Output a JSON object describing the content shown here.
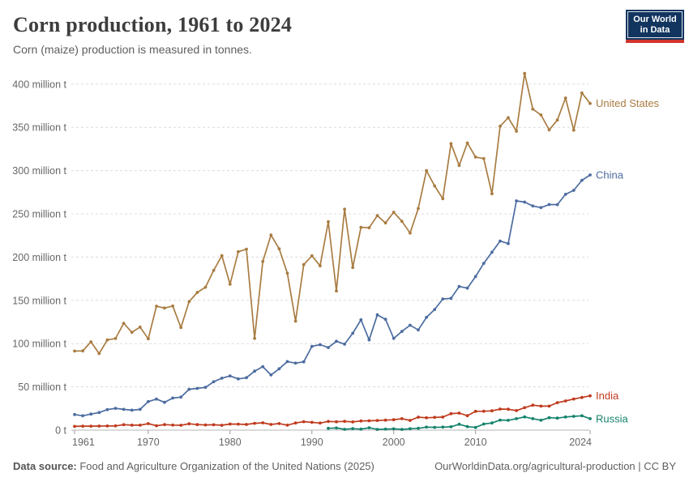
{
  "header": {
    "title": "Corn production, 1961 to 2024",
    "subtitle": "Corn (maize) production is measured in tonnes.",
    "logo": {
      "line1": "Our World",
      "line2": "in Data",
      "bg_color": "#12355f",
      "stripe_color": "#d1342b",
      "text_color": "#ffffff"
    }
  },
  "chart_data": {
    "type": "line",
    "title": "Corn production, 1961 to 2024",
    "subtitle": "Corn (maize) production is measured in tonnes.",
    "unit": "tonnes",
    "xlabel": "",
    "ylabel": "",
    "ylim": [
      0,
      400
    ],
    "grid": "horizontal-dashed",
    "legend_position": "end-of-line",
    "x_ticks": [
      1961,
      1970,
      1980,
      1990,
      2000,
      2010,
      2024
    ],
    "y_ticks": [
      {
        "value": 0,
        "label": "0 t"
      },
      {
        "value": 50,
        "label": "50 million t"
      },
      {
        "value": 100,
        "label": "100 million t"
      },
      {
        "value": 150,
        "label": "150 million t"
      },
      {
        "value": 200,
        "label": "200 million t"
      },
      {
        "value": 250,
        "label": "250 million t"
      },
      {
        "value": 300,
        "label": "300 million t"
      },
      {
        "value": 350,
        "label": "350 million t"
      },
      {
        "value": 400,
        "label": "400 million t"
      }
    ],
    "x": [
      1961,
      1962,
      1963,
      1964,
      1965,
      1966,
      1967,
      1968,
      1969,
      1970,
      1971,
      1972,
      1973,
      1974,
      1975,
      1976,
      1977,
      1978,
      1979,
      1980,
      1981,
      1982,
      1983,
      1984,
      1985,
      1986,
      1987,
      1988,
      1989,
      1990,
      1991,
      1992,
      1993,
      1994,
      1995,
      1996,
      1997,
      1998,
      1999,
      2000,
      2001,
      2002,
      2003,
      2004,
      2005,
      2006,
      2007,
      2008,
      2009,
      2010,
      2011,
      2012,
      2013,
      2014,
      2015,
      2016,
      2017,
      2018,
      2019,
      2020,
      2021,
      2022,
      2023,
      2024
    ],
    "value_unit": "million tonnes",
    "series": [
      {
        "name": "United States",
        "color": "#a97c42",
        "values": [
          91.4,
          91.6,
          102.1,
          88.5,
          104.2,
          105.9,
          123.5,
          113.0,
          119.1,
          105.5,
          143.3,
          141.1,
          143.4,
          118.5,
          148.5,
          159.2,
          165.2,
          184.6,
          201.7,
          168.6,
          206.2,
          209.2,
          106.0,
          194.9,
          225.5,
          209.6,
          181.4,
          125.9,
          191.3,
          201.5,
          189.9,
          240.8,
          160.9,
          255.3,
          188.0,
          234.5,
          233.9,
          247.9,
          239.5,
          251.9,
          241.4,
          227.8,
          256.2,
          299.9,
          282.3,
          267.5,
          331.2,
          305.9,
          331.9,
          315.6,
          313.9,
          273.2,
          351.3,
          361.1,
          345.5,
          412.3,
          371.1,
          364.3,
          347.0,
          358.4,
          383.9,
          346.7,
          389.7,
          377.6
        ]
      },
      {
        "name": "China",
        "color": "#4c6ca0",
        "values": [
          18.0,
          16.6,
          18.5,
          20.3,
          23.7,
          25.2,
          24.0,
          23.0,
          24.0,
          33.0,
          35.9,
          32.1,
          37.1,
          38.1,
          47.2,
          48.2,
          49.4,
          55.9,
          60.0,
          62.6,
          59.2,
          60.6,
          68.2,
          73.4,
          63.8,
          70.9,
          79.2,
          77.4,
          78.9,
          96.8,
          98.8,
          95.4,
          102.7,
          99.3,
          112.0,
          127.5,
          104.3,
          133.2,
          128.1,
          106.0,
          114.1,
          121.3,
          115.8,
          130.3,
          139.4,
          151.6,
          152.3,
          166.0,
          164.1,
          177.5,
          192.8,
          205.6,
          218.5,
          215.6,
          265.0,
          263.6,
          259.1,
          257.2,
          260.8,
          260.7,
          272.6,
          277.2,
          288.8,
          294.9
        ]
      },
      {
        "name": "India",
        "color": "#bf3b1e",
        "values": [
          4.3,
          4.6,
          4.6,
          4.7,
          4.8,
          4.9,
          6.3,
          5.7,
          5.7,
          7.5,
          5.1,
          6.4,
          5.8,
          5.6,
          7.3,
          6.4,
          6.0,
          6.2,
          5.6,
          7.0,
          6.9,
          6.6,
          7.9,
          8.4,
          6.6,
          7.6,
          5.7,
          8.2,
          9.7,
          9.0,
          8.1,
          10.0,
          9.6,
          10.1,
          9.5,
          10.6,
          10.8,
          11.1,
          11.5,
          12.0,
          13.2,
          11.2,
          15.0,
          14.2,
          14.7,
          15.1,
          19.0,
          19.7,
          16.7,
          21.7,
          21.8,
          22.3,
          24.3,
          24.2,
          22.6,
          25.9,
          28.8,
          27.7,
          27.7,
          31.7,
          33.7,
          36.0,
          37.7,
          39.6
        ]
      },
      {
        "name": "Russia",
        "color": "#15836c",
        "values": [
          null,
          null,
          null,
          null,
          null,
          null,
          null,
          null,
          null,
          null,
          null,
          null,
          null,
          null,
          null,
          null,
          null,
          null,
          null,
          null,
          null,
          null,
          null,
          null,
          null,
          null,
          null,
          null,
          null,
          null,
          null,
          2.1,
          2.4,
          0.9,
          1.7,
          1.1,
          2.7,
          0.8,
          1.1,
          1.5,
          0.8,
          1.6,
          2.1,
          3.5,
          3.2,
          3.5,
          3.8,
          6.7,
          4.0,
          3.1,
          7.0,
          8.2,
          11.6,
          11.3,
          13.2,
          15.3,
          13.2,
          11.4,
          14.3,
          13.9,
          15.2,
          15.9,
          16.6,
          13.2
        ]
      }
    ]
  },
  "footer": {
    "source_label": "Data source:",
    "source_text": " Food and Agriculture Organization of the United Nations (2025)",
    "link_text": "OurWorldinData.org/agricultural-production | CC BY"
  },
  "style": {
    "grid_color": "#dcdcdc",
    "axis_color": "#b5b5b5",
    "tick_color": "#999999",
    "tick_label_color": "#666666"
  }
}
